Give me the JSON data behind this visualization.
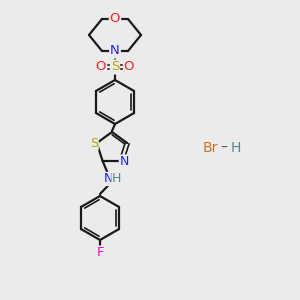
{
  "background_color": "#ebebeb",
  "bond_color": "#1a1a1a",
  "atom_colors": {
    "O": "#ff2020",
    "N": "#2020ff",
    "S_sulfonyl": "#bbaa00",
    "S_thiazole": "#bbaa00",
    "F": "#ff00cc",
    "Br": "#d07020",
    "N_thiazole": "#2020ff",
    "NH": "#2020ff",
    "H": "#558888"
  },
  "figsize": [
    3.0,
    3.0
  ],
  "dpi": 100
}
